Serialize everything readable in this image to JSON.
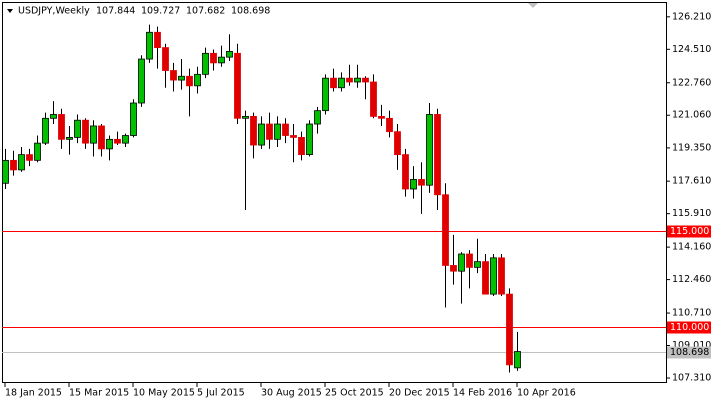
{
  "chart_data": {
    "type": "candlestick",
    "title": "USDJPY,Weekly",
    "header_values": [
      "107.844",
      "109.727",
      "107.682",
      "108.698"
    ],
    "categories": [
      "18 Jan 2015",
      null,
      null,
      null,
      null,
      null,
      null,
      null,
      "15 Mar 2015",
      null,
      null,
      null,
      null,
      null,
      null,
      null,
      "10 May 2015",
      null,
      null,
      null,
      null,
      null,
      null,
      null,
      "5 Jul 2015",
      null,
      null,
      null,
      null,
      null,
      null,
      null,
      "30 Aug 2015",
      null,
      null,
      null,
      null,
      null,
      null,
      null,
      "25 Oct 2015",
      null,
      null,
      null,
      null,
      null,
      null,
      null,
      "20 Dec 2015",
      null,
      null,
      null,
      null,
      null,
      null,
      null,
      "14 Feb 2016",
      null,
      null,
      null,
      null,
      null,
      null,
      null,
      "10 Apr 2016"
    ],
    "series": [
      {
        "up_color": "#00c000",
        "down_color": "#e00000",
        "wick_color": "#000000",
        "open": [
          117.5,
          118.7,
          118.2,
          119.0,
          118.7,
          119.6,
          120.9,
          121.1,
          119.8,
          119.9,
          120.8,
          119.6,
          120.5,
          119.3,
          119.8,
          119.6,
          120.0,
          121.7,
          124.0,
          125.4,
          124.6,
          123.4,
          122.9,
          123.1,
          122.6,
          123.2,
          124.3,
          123.8,
          124.1,
          124.3,
          120.9,
          121.0,
          119.5,
          120.6,
          119.8,
          120.6,
          120.0,
          119.9,
          119.0,
          120.6,
          121.3,
          123.0,
          122.5,
          123.0,
          122.8,
          123.0,
          122.8,
          121.0,
          120.9,
          120.2,
          119.0,
          117.2,
          117.7,
          117.4,
          121.1,
          116.9,
          113.2,
          112.9,
          113.8,
          113.1,
          113.4,
          111.7,
          113.6,
          111.7,
          107.844
        ],
        "high": [
          119.3,
          119.2,
          119.4,
          119.3,
          120.0,
          121.2,
          121.8,
          121.4,
          120.5,
          121.1,
          120.9,
          120.8,
          120.6,
          120.0,
          120.2,
          120.1,
          121.9,
          124.2,
          125.8,
          125.7,
          124.8,
          123.8,
          124.0,
          123.5,
          123.6,
          124.6,
          124.5,
          124.7,
          125.3,
          124.8,
          121.3,
          121.2,
          121.0,
          121.2,
          121.0,
          120.9,
          120.6,
          120.2,
          120.8,
          121.5,
          123.2,
          123.5,
          123.3,
          123.7,
          123.7,
          123.1,
          123.2,
          121.6,
          121.3,
          120.6,
          119.3,
          118.4,
          118.6,
          121.7,
          121.4,
          117.5,
          114.8,
          113.9,
          114.0,
          114.6,
          113.8,
          113.8,
          113.8,
          112.0,
          109.727
        ],
        "low": [
          117.2,
          117.9,
          118.1,
          118.4,
          118.6,
          119.5,
          120.6,
          119.3,
          119.0,
          119.6,
          119.3,
          118.9,
          118.9,
          118.7,
          119.5,
          119.4,
          119.9,
          121.5,
          123.8,
          123.5,
          122.5,
          122.3,
          122.4,
          121.0,
          122.2,
          123.0,
          123.4,
          123.6,
          123.9,
          120.6,
          116.1,
          118.8,
          119.3,
          119.3,
          119.4,
          119.6,
          118.6,
          118.7,
          118.9,
          120.1,
          121.1,
          122.3,
          122.3,
          122.6,
          122.5,
          121.9,
          120.9,
          120.5,
          119.9,
          118.2,
          116.8,
          116.7,
          115.9,
          117.0,
          116.1,
          111.0,
          112.2,
          111.2,
          112.0,
          112.8,
          111.7,
          111.6,
          111.6,
          107.6,
          107.682
        ],
        "close": [
          118.7,
          118.2,
          119.0,
          118.7,
          119.6,
          120.9,
          121.1,
          119.8,
          119.9,
          120.8,
          119.6,
          120.5,
          119.3,
          119.8,
          119.6,
          120.0,
          121.7,
          124.0,
          125.4,
          124.6,
          123.4,
          122.9,
          123.1,
          122.6,
          123.2,
          124.3,
          123.8,
          124.1,
          124.4,
          120.9,
          121.0,
          119.5,
          120.6,
          119.8,
          120.6,
          120.0,
          119.9,
          119.0,
          120.6,
          121.3,
          123.0,
          122.5,
          123.0,
          122.8,
          123.0,
          122.8,
          121.0,
          120.9,
          120.2,
          119.0,
          117.2,
          117.7,
          117.4,
          121.1,
          116.9,
          113.2,
          112.9,
          113.8,
          113.1,
          113.4,
          111.7,
          113.6,
          111.7,
          108.0,
          108.698
        ]
      }
    ],
    "ylim": [
      107.05,
      127.09
    ],
    "yticks": [
      {
        "value": 126.21,
        "label": "126.210"
      },
      {
        "value": 124.51,
        "label": "124.510"
      },
      {
        "value": 122.76,
        "label": "122.760"
      },
      {
        "value": 121.06,
        "label": "121.060"
      },
      {
        "value": 119.35,
        "label": "119.350"
      },
      {
        "value": 117.61,
        "label": "117.610"
      },
      {
        "value": 115.91,
        "label": "115.910"
      },
      {
        "value": 114.16,
        "label": "114.160"
      },
      {
        "value": 112.46,
        "label": "112.460"
      },
      {
        "value": 110.71,
        "label": "110.710"
      },
      {
        "value": 109.01,
        "label": "109.010"
      },
      {
        "value": 107.31,
        "label": "107.310"
      }
    ],
    "hlines": [
      {
        "value": 115,
        "label": "115.000",
        "color": "#ff0000"
      },
      {
        "value": 110,
        "label": "110.000",
        "color": "#ff0000"
      },
      {
        "value": 108.698,
        "label": "108.698",
        "color": "#c0c0c0"
      }
    ]
  }
}
